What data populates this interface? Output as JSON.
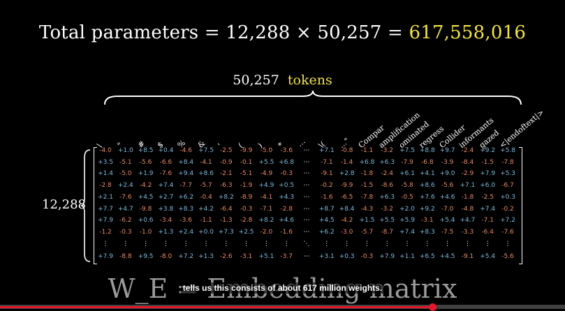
{
  "equation": {
    "prefix": "Total parameters = 12,288 × 50,257 = ",
    "result": "617,558,016"
  },
  "tokens_label": {
    "count": "50,257",
    "word": "tokens"
  },
  "row_label": "12,288",
  "columns": [
    "\\",
    "\"",
    "#",
    "$",
    "%",
    "&",
    "'",
    "(",
    ")",
    "*",
    "⋯",
    "\\(",
    "...\"",
    "Compar",
    "amplification",
    "ominated",
    "regress",
    "Collider",
    "informants",
    "gazed",
    "<|endoftext|>"
  ],
  "matrix": [
    [
      "-4.0",
      "+1.0",
      "+8.5",
      "+0.4",
      "-4.6",
      "+7.5",
      "-2.5",
      "-9.9",
      "-5.0",
      "-3.6",
      "⋯",
      "+7.1",
      "-0.8",
      "-1.1",
      "-3.2",
      "+7.5",
      "+8.8",
      "+9.7",
      "-2.4",
      "+9.2",
      "+5.8"
    ],
    [
      "+3.5",
      "-5.1",
      "-5.6",
      "-6.6",
      "+8.4",
      "-4.1",
      "-0.9",
      "-0.1",
      "+5.5",
      "+6.8",
      "⋯",
      "-7.1",
      "-1.4",
      "+6.8",
      "+6.3",
      "-7.9",
      "-6.8",
      "-3.9",
      "-8.4",
      "-1.5",
      "-7.8"
    ],
    [
      "+1.4",
      "-5.0",
      "+1.9",
      "-7.6",
      "+9.4",
      "+8.6",
      "-2.1",
      "-5.1",
      "-4.9",
      "-0.3",
      "⋯",
      "-9.1",
      "+2.8",
      "-1.8",
      "-2.4",
      "+6.1",
      "+4.1",
      "+9.0",
      "-2.9",
      "+7.9",
      "+5.3"
    ],
    [
      "-2.8",
      "+2.4",
      "-4.2",
      "+7.4",
      "-7.7",
      "-5.7",
      "-6.3",
      "-1.9",
      "+4.9",
      "+0.5",
      "⋯",
      "-0.2",
      "-9.9",
      "-1.5",
      "-8.6",
      "-5.8",
      "+8.6",
      "-5.6",
      "+7.1",
      "+6.0",
      "-6.7"
    ],
    [
      "+2.1",
      "-7.6",
      "+4.5",
      "+2.7",
      "+6.2",
      "-0.4",
      "+8.2",
      "-8.9",
      "-4.1",
      "+4.3",
      "⋯",
      "-1.6",
      "-6.5",
      "-7.8",
      "+6.3",
      "-0.5",
      "+7.6",
      "+4.6",
      "-1.8",
      "-2.5",
      "+0.3"
    ],
    [
      "+7.7",
      "+4.7",
      "-9.8",
      "+3.8",
      "+8.3",
      "+4.2",
      "-6.4",
      "-0.3",
      "-7.1",
      "-2.8",
      "⋯",
      "+8.7",
      "+8.4",
      "-4.3",
      "-3.2",
      "+2.0",
      "+9.2",
      "-7.0",
      "-4.8",
      "+7.4",
      "-0.2"
    ],
    [
      "+7.9",
      "-6.2",
      "+0.6",
      "-3.4",
      "-3.6",
      "-1.1",
      "-1.3",
      "-2.8",
      "+8.2",
      "+4.6",
      "⋯",
      "+4.5",
      "-4.2",
      "+1.5",
      "+5.5",
      "+5.9",
      "-3.1",
      "+5.4",
      "+4.7",
      "-7.1",
      "+7.2"
    ],
    [
      "-1.2",
      "-0.3",
      "-1.0",
      "+1.3",
      "+2.4",
      "+0.0",
      "+7.3",
      "+2.5",
      "-2.0",
      "-1.6",
      "⋯",
      "+6.2",
      "-3.0",
      "-5.7",
      "-8.7",
      "+7.4",
      "+8.3",
      "-7.5",
      "-3.3",
      "-6.4",
      "-7.6"
    ],
    [
      "⋮",
      "⋮",
      "⋮",
      "⋮",
      "⋮",
      "⋮",
      "⋮",
      "⋮",
      "⋮",
      "⋮",
      "⋱",
      "⋮",
      "⋮",
      "⋮",
      "⋮",
      "⋮",
      "⋮",
      "⋮",
      "⋮",
      "⋮",
      "⋮"
    ],
    [
      "+7.9",
      "-8.8",
      "+9.5",
      "-8.0",
      "+7.2",
      "+1.3",
      "-2.6",
      "-3.1",
      "+5.1",
      "-3.7",
      "⋯",
      "+3.1",
      "+0.3",
      "-0.3",
      "+7.9",
      "+1.1",
      "+6.5",
      "+4.5",
      "-9.1",
      "+5.4",
      "-5.6"
    ]
  ],
  "matrix_title": "W_E = Embedding matrix",
  "caption": "tells us this consists of about 617 million weights.",
  "progress": {
    "played_fraction": 0.765
  },
  "colors": {
    "highlight": "#f2e34a",
    "positive": "#7fb8d8",
    "negative": "#e58a6a",
    "progress": "#e3182d"
  }
}
